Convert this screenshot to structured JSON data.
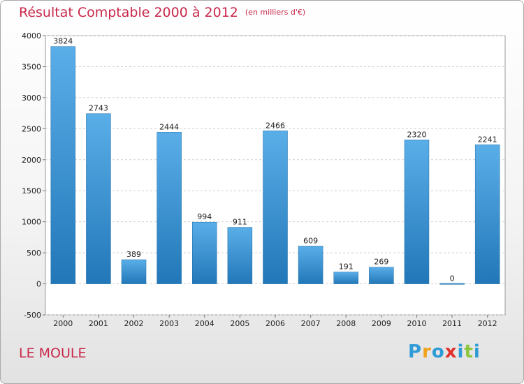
{
  "header": {
    "title": "Résultat Comptable 2000 à 2012",
    "unit": "(en milliers d'€)"
  },
  "footer": {
    "place": "LE MOULE",
    "logo_letters": [
      {
        "ch": "P",
        "color": "#2e9bd6"
      },
      {
        "ch": "r",
        "color": "#f0a21f"
      },
      {
        "ch": "o",
        "color": "#2e9bd6"
      },
      {
        "ch": "x",
        "color": "#e3312d"
      },
      {
        "ch": "i",
        "color": "#2e9bd6"
      },
      {
        "ch": "t",
        "color": "#8cc63f"
      },
      {
        "ch": "i",
        "color": "#2e9bd6"
      }
    ]
  },
  "colors": {
    "accent": "#c8284a",
    "bar_top": "#5aaee8",
    "bar_bottom": "#2277b8"
  },
  "chart_data": {
    "type": "bar",
    "title": "Résultat Comptable 2000 à 2012",
    "subtitle": "(en milliers d'€)",
    "categories": [
      "2000",
      "2001",
      "2002",
      "2003",
      "2004",
      "2005",
      "2006",
      "2007",
      "2008",
      "2009",
      "2010",
      "2011",
      "2012"
    ],
    "values": [
      3824,
      2743,
      389,
      2444,
      994,
      911,
      2466,
      609,
      191,
      269,
      2320,
      0,
      2241
    ],
    "ylim": [
      -500,
      4000
    ],
    "yticks": [
      -500,
      0,
      500,
      1000,
      1500,
      2000,
      2500,
      3000,
      3500,
      4000
    ],
    "grid": true,
    "data_labels": true
  }
}
